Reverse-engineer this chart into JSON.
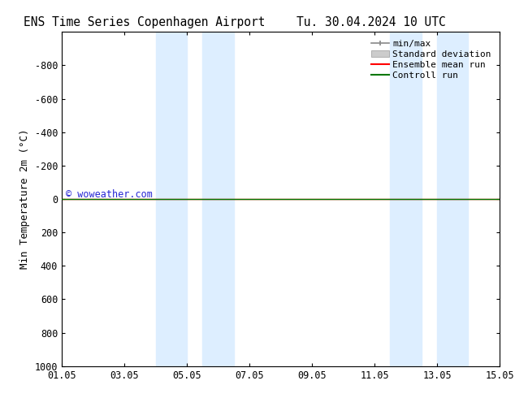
{
  "title_left": "ENS Time Series Copenhagen Airport",
  "title_right": "Tu. 30.04.2024 10 UTC",
  "ylabel": "Min Temperature 2m (°C)",
  "ylim_bottom": 1000,
  "ylim_top": -1000,
  "yticks": [
    -800,
    -600,
    -400,
    -200,
    0,
    200,
    400,
    600,
    800,
    1000
  ],
  "xlim": [
    0,
    14
  ],
  "xtick_labels": [
    "01.05",
    "03.05",
    "05.05",
    "07.05",
    "09.05",
    "11.05",
    "13.05",
    "15.05"
  ],
  "xtick_positions": [
    0,
    2,
    4,
    6,
    8,
    10,
    12,
    14
  ],
  "blue_bands": [
    [
      3.0,
      4.0
    ],
    [
      4.5,
      5.5
    ],
    [
      10.5,
      11.5
    ],
    [
      12.0,
      13.0
    ]
  ],
  "control_run_y": 0,
  "control_run_color": "#007700",
  "ensemble_mean_color": "#ff0000",
  "watermark": "© woweather.com",
  "watermark_color": "#0000cc",
  "band_color": "#ddeeff",
  "background_color": "#ffffff",
  "legend_items": [
    "min/max",
    "Standard deviation",
    "Ensemble mean run",
    "Controll run"
  ],
  "legend_colors_line": [
    "#888888",
    "#cccccc",
    "#ff0000",
    "#007700"
  ],
  "title_fontsize": 10.5,
  "axis_label_fontsize": 9,
  "tick_fontsize": 8.5,
  "legend_fontsize": 8,
  "watermark_fontsize": 8.5
}
